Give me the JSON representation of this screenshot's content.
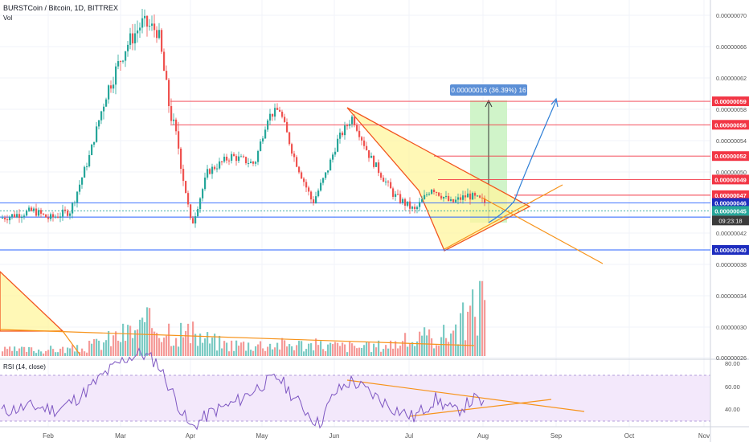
{
  "header": {
    "title": "BURSTCoin / Bitcoin, 1D, BITTREX",
    "vol_label": "Vol"
  },
  "rsi_panel": {
    "title": "RSI (14, close)"
  },
  "measure_label": "0.00000016 (36.39%) 16",
  "countdown": "09:23:18",
  "colors": {
    "up": "#26a69a",
    "down": "#ef5350",
    "vol_up": "#7ccbc4",
    "vol_down": "#f59b99",
    "hline_red": "#f23645",
    "hline_blue": "#2962ff",
    "orange": "#f7931a",
    "rsi_line": "#7e57c2",
    "rsi_band": "#f3e8fb",
    "triangle_fill": "#fff59d",
    "measure_fill": "#c8f2c0",
    "arrow_blue": "#2f7fd6",
    "label_red": "#f23645",
    "label_blue": "#1e2dbf",
    "label_green": "#26a69a",
    "label_dark": "#3a3a3a",
    "measure_label_bg": "#5b8fd6"
  },
  "chart_data": [
    {
      "type": "candlestick",
      "title": "BURSTCoin / Bitcoin, 1D, BITTREX",
      "x_ticks": [
        "Feb",
        "Mar",
        "Apr",
        "May",
        "Jun",
        "Jul",
        "Aug",
        "Sep",
        "Oct",
        "Nov"
      ],
      "y_ticks": [
        7e-07,
        6.6e-07,
        6.2e-07,
        5.8e-07,
        5.4e-07,
        5e-07,
        4.2e-07,
        3.8e-07,
        3.4e-07,
        3e-07,
        2.6e-07
      ],
      "ylim": [
        2.6e-07,
        7.2e-07
      ],
      "price_levels": [
        {
          "value": "0.00000059",
          "color": "red"
        },
        {
          "value": "0.00000056",
          "color": "red"
        },
        {
          "value": "0.00000052",
          "color": "red"
        },
        {
          "value": "0.00000049",
          "color": "red"
        },
        {
          "value": "0.00000047",
          "color": "red"
        },
        {
          "value": "0.00000046",
          "color": "blue"
        },
        {
          "value": "0.00000045",
          "color": "green"
        },
        {
          "value": "0.00000040",
          "color": "blue"
        }
      ],
      "approx_path": [
        [
          "Jan 10",
          4.4e-07
        ],
        [
          "Jan 25",
          4.5e-07
        ],
        [
          "Feb 1",
          4.4e-07
        ],
        [
          "Feb 10",
          4.5e-07
        ],
        [
          "Feb 18",
          5.2e-07
        ],
        [
          "Feb 25",
          6e-07
        ],
        [
          "Mar 3",
          6.6e-07
        ],
        [
          "Mar 10",
          6.9e-07
        ],
        [
          "Mar 17",
          6.8e-07
        ],
        [
          "Mar 22",
          5.8e-07
        ],
        [
          "Mar 26",
          5.3e-07
        ],
        [
          "Apr 1",
          4.3e-07
        ],
        [
          "Apr 8",
          5e-07
        ],
        [
          "Apr 18",
          5.2e-07
        ],
        [
          "Apr 28",
          5.1e-07
        ],
        [
          "May 3",
          5.7e-07
        ],
        [
          "May 8",
          5.8e-07
        ],
        [
          "May 14",
          5.2e-07
        ],
        [
          "May 22",
          4.6e-07
        ],
        [
          "May 28",
          5e-07
        ],
        [
          "Jun 2",
          5.4e-07
        ],
        [
          "Jun 8",
          5.7e-07
        ],
        [
          "Jun 15",
          5.2e-07
        ],
        [
          "Jun 25",
          4.7e-07
        ],
        [
          "Jul 3",
          4.5e-07
        ],
        [
          "Jul 10",
          4.8e-07
        ],
        [
          "Jul 18",
          4.6e-07
        ],
        [
          "Jul 25",
          4.7e-07
        ],
        [
          "Aug 2",
          4.6e-07
        ]
      ]
    },
    {
      "type": "bar",
      "title": "Vol",
      "approx_volume_relative": [
        [
          "Jan",
          0.1
        ],
        [
          "Feb",
          0.12
        ],
        [
          "Mar",
          0.55
        ],
        [
          "Apr",
          0.2
        ],
        [
          "May",
          0.2
        ],
        [
          "Jun",
          0.15
        ],
        [
          "Jul",
          0.35
        ],
        [
          "Late Jul",
          0.6
        ],
        [
          "Aug 1",
          1.0
        ]
      ]
    },
    {
      "type": "line",
      "title": "RSI (14, close)",
      "y_ticks": [
        80,
        60,
        40
      ],
      "ylim": [
        28,
        82
      ],
      "approx_values": [
        [
          "Jan 10",
          45
        ],
        [
          "Jan 25",
          48
        ],
        [
          "Feb 5",
          46
        ],
        [
          "Feb 15",
          54
        ],
        [
          "Feb 25",
          66
        ],
        [
          "Mar 3",
          74
        ],
        [
          "Mar 10",
          77
        ],
        [
          "Mar 17",
          72
        ],
        [
          "Mar 25",
          52
        ],
        [
          "Apr 1",
          36
        ],
        [
          "Apr 10",
          45
        ],
        [
          "Apr 20",
          50
        ],
        [
          "May 1",
          60
        ],
        [
          "May 8",
          64
        ],
        [
          "May 15",
          52
        ],
        [
          "May 25",
          38
        ],
        [
          "Jun 1",
          55
        ],
        [
          "Jun 8",
          62
        ],
        [
          "Jun 15",
          56
        ],
        [
          "Jun 25",
          47
        ],
        [
          "Jul 3",
          42
        ],
        [
          "Jul 12",
          52
        ],
        [
          "Jul 20",
          45
        ],
        [
          "Jul 28",
          52
        ],
        [
          "Aug 2",
          49
        ]
      ]
    }
  ]
}
